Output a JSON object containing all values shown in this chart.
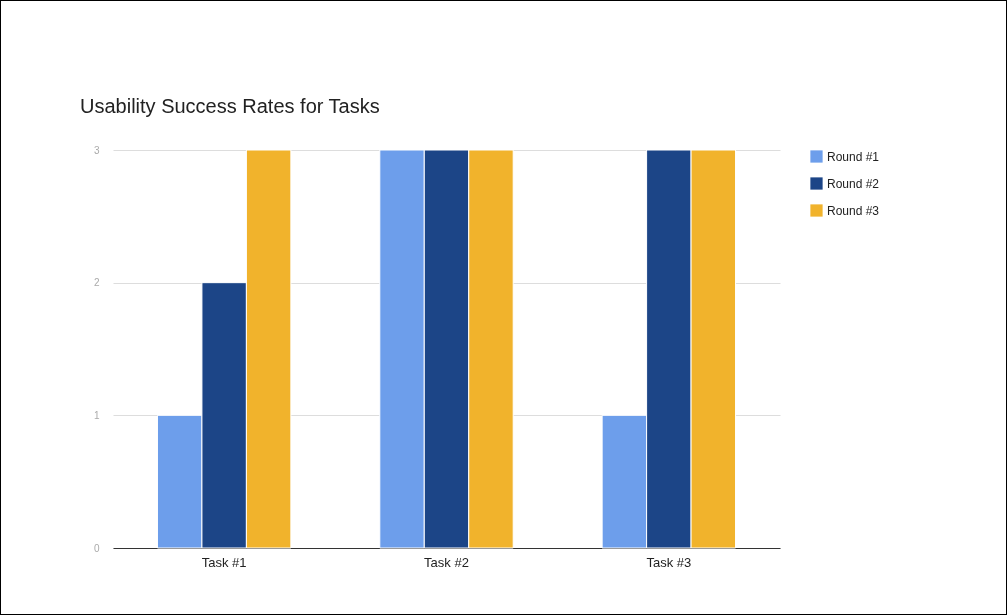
{
  "chart_data": {
    "type": "bar",
    "title": "Usability Success Rates for Tasks",
    "categories": [
      "Task #1",
      "Task #2",
      "Task #3"
    ],
    "series": [
      {
        "name": "Round #1",
        "color": "#6d9eeb",
        "values": [
          1,
          3,
          1
        ]
      },
      {
        "name": "Round #2",
        "color": "#1c4587",
        "values": [
          2,
          3,
          3
        ]
      },
      {
        "name": "Round #3",
        "color": "#f1b32c",
        "values": [
          3,
          3,
          3
        ]
      }
    ],
    "ylim": [
      0,
      3
    ],
    "yticks": [
      0,
      1,
      2,
      3
    ],
    "grid": "y",
    "legend": "top right"
  }
}
